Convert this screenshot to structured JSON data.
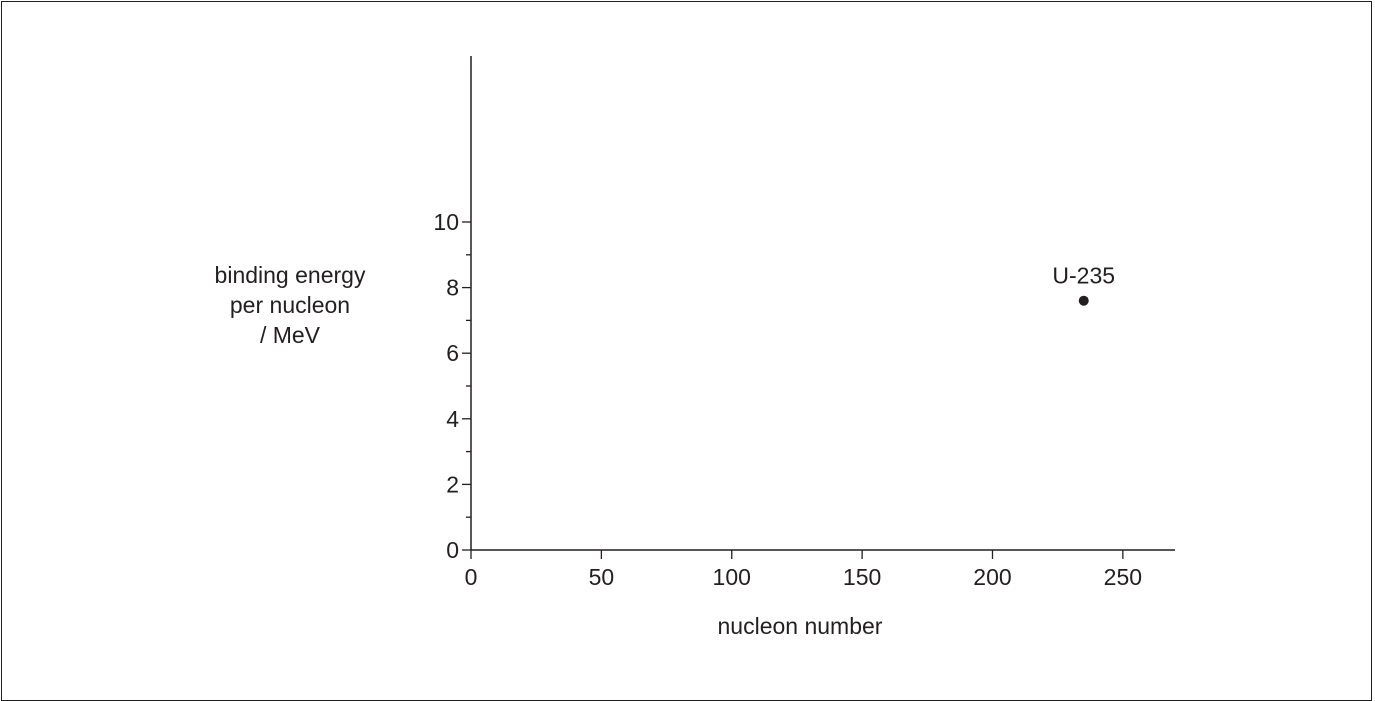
{
  "chart_data": {
    "type": "scatter",
    "title": "",
    "xlabel": "nucleon number",
    "ylabel_lines": [
      "binding energy",
      "per nucleon",
      "/ MeV"
    ],
    "xlim": [
      0,
      270
    ],
    "ylim": [
      0,
      15
    ],
    "x_ticks": [
      0,
      50,
      100,
      150,
      200,
      250
    ],
    "y_ticks": [
      0,
      2,
      4,
      6,
      8,
      10
    ],
    "y_minor_ticks": [
      1,
      3,
      5,
      7,
      9
    ],
    "grid": false,
    "points": [
      {
        "x": 235,
        "y": 7.6,
        "label": "U-235"
      }
    ]
  },
  "colors": {
    "ink": "#231f20",
    "background": "#ffffff"
  }
}
